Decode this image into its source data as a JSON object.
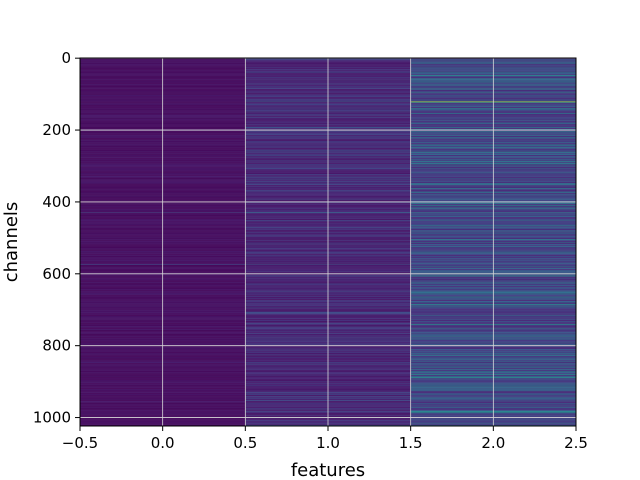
{
  "chart_data": {
    "type": "heatmap",
    "xlabel": "features",
    "ylabel": "channels",
    "x_ticks": [
      "−0.5",
      "0.0",
      "0.5",
      "1.0",
      "1.5",
      "2.0",
      "2.5"
    ],
    "y_ticks": [
      "0",
      "200",
      "400",
      "600",
      "800",
      "1000"
    ],
    "x_tick_values": [
      -0.5,
      0.0,
      0.5,
      1.0,
      1.5,
      2.0,
      2.5
    ],
    "y_tick_values": [
      0,
      200,
      400,
      600,
      800,
      1000
    ],
    "xlim": [
      -0.5,
      2.5
    ],
    "ylim": [
      1023.5,
      -0.5
    ],
    "columns": [
      0,
      1,
      2
    ],
    "channels": 1024,
    "colormap": "viridis",
    "grid": true,
    "base_level": [
      0.02,
      0.06,
      0.12
    ],
    "highlights": [
      {
        "column": 2,
        "channel": 121,
        "value": 0.85
      },
      {
        "column": 2,
        "channel": 122,
        "value": 0.8
      },
      {
        "column": 2,
        "channel": 124,
        "value": 0.55
      },
      {
        "column": 2,
        "channel": 16,
        "value": 0.5
      },
      {
        "column": 2,
        "channel": 198,
        "value": 0.45
      },
      {
        "column": 2,
        "channel": 410,
        "value": 0.5
      },
      {
        "column": 2,
        "channel": 598,
        "value": 0.45
      },
      {
        "column": 2,
        "channel": 770,
        "value": 0.45
      },
      {
        "column": 2,
        "channel": 880,
        "value": 0.5
      },
      {
        "column": 2,
        "channel": 905,
        "value": 0.45
      },
      {
        "column": 2,
        "channel": 935,
        "value": 0.45
      },
      {
        "column": 1,
        "channel": 430,
        "value": 0.4
      },
      {
        "column": 1,
        "channel": 120,
        "value": 0.35
      },
      {
        "column": 1,
        "channel": 575,
        "value": 0.3
      },
      {
        "column": 1,
        "channel": 1000,
        "value": 0.35
      },
      {
        "column": 1,
        "channel": 258,
        "value": 0.3
      },
      {
        "column": 0,
        "channel": 575,
        "value": 0.3
      },
      {
        "column": 0,
        "channel": 430,
        "value": 0.25
      },
      {
        "column": 0,
        "channel": 1000,
        "value": 0.25
      }
    ],
    "colors": {
      "background": "#ffffff",
      "grid": "#d8d8d8",
      "axis": "#000000"
    }
  }
}
